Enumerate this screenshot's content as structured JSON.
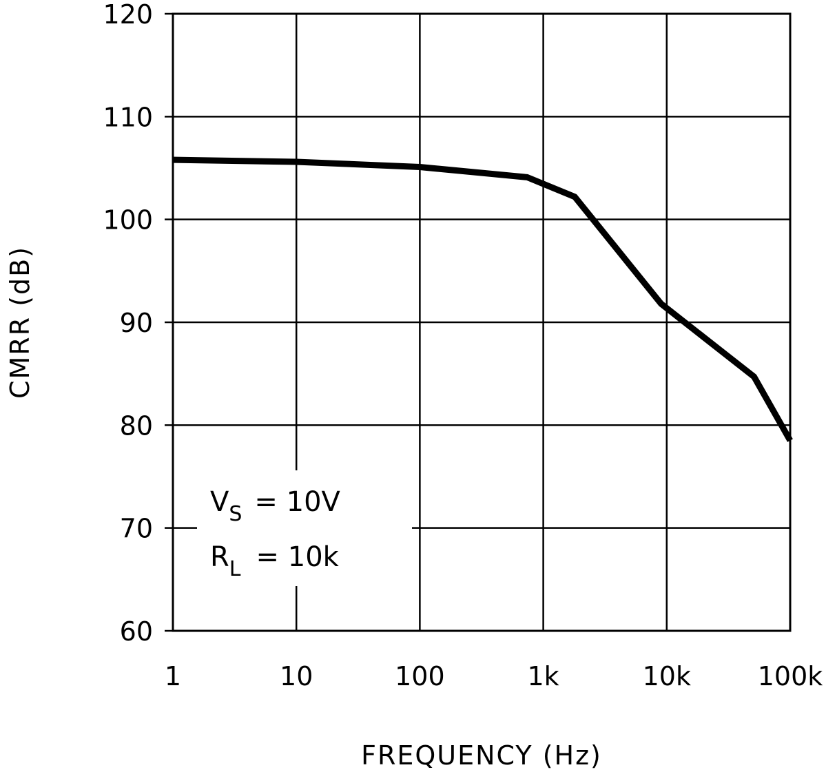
{
  "chart_data": {
    "type": "line",
    "title": "",
    "xlabel": "FREQUENCY (Hz)",
    "ylabel": "CMRR (dB)",
    "xscale": "log",
    "xlim": [
      1,
      100000
    ],
    "ylim": [
      60,
      120
    ],
    "grid": true,
    "x_ticks": [
      1,
      10,
      100,
      1000,
      10000,
      100000
    ],
    "x_tick_labels": [
      "1",
      "10",
      "100",
      "1k",
      "10k",
      "100k"
    ],
    "y_ticks": [
      60,
      70,
      80,
      90,
      100,
      110,
      120
    ],
    "y_tick_labels": [
      "60",
      "70",
      "80",
      "90",
      "100",
      "110",
      "120"
    ],
    "series": [
      {
        "name": "CMRR",
        "x": [
          1,
          10,
          100,
          740,
          1800,
          9000,
          51000,
          100000
        ],
        "y": [
          105.8,
          105.6,
          105.1,
          104.1,
          102.2,
          91.8,
          84.7,
          78.5
        ]
      }
    ],
    "annotations": {
      "vs": {
        "main": "V",
        "sub": "S",
        "value": "=  10V"
      },
      "rl": {
        "main": "R",
        "sub": "L",
        "value": "=  10k"
      }
    },
    "line_color": "#000000"
  }
}
